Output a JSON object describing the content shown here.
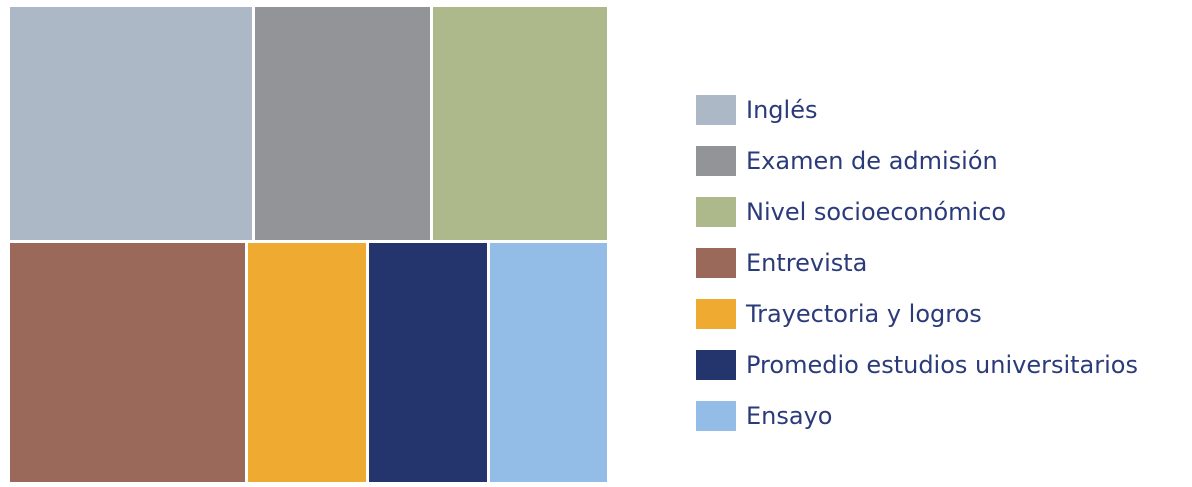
{
  "chart_data": {
    "type": "treemap",
    "title": "",
    "legend_position": "right",
    "items": [
      {
        "label": "Inglés",
        "value": 18,
        "color": "#adb8c6"
      },
      {
        "label": "Examen de admisión",
        "value": 13,
        "color": "#939497"
      },
      {
        "label": "Nivel socioeconómico",
        "value": 13,
        "color": "#adb88b"
      },
      {
        "label": "Entrevista",
        "value": 18,
        "color": "#9b6959"
      },
      {
        "label": "Trayectoria y logros",
        "value": 9,
        "color": "#efab31"
      },
      {
        "label": "Promedio estudios universitarios",
        "value": 9,
        "color": "#24356e"
      },
      {
        "label": "Ensayo",
        "value": 9,
        "color": "#93bde6"
      }
    ]
  }
}
